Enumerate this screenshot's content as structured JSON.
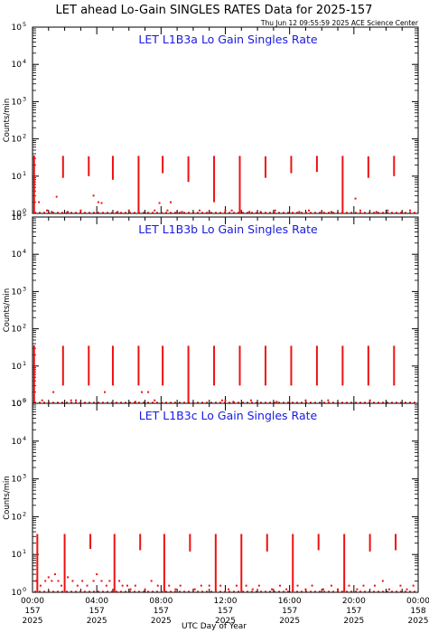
{
  "figure": {
    "title": "LET ahead Lo-Gain SINGLES RATES Data for 2025-157",
    "timestamp": "Thu Jun 12 09:55:59 2025 ACE Science Center",
    "xlabel": "UTC Day of Year",
    "ylabel": "Counts/min",
    "series_color": "#ee1111",
    "panel_title_color": "#1a1adf"
  },
  "chart_data": [
    {
      "type": "scatter",
      "title": "LET L1B3a Lo Gain Singles Rate",
      "ylabel": "Counts/min",
      "xlabel": "UTC Day of Year",
      "x_unit": "hours",
      "xlim": [
        0,
        24
      ],
      "ylim": [
        1,
        100000
      ],
      "log_y": true,
      "grid": false,
      "spikes": [
        {
          "x": 0.1,
          "y_low": 1,
          "y_high": 36
        },
        {
          "x": 1.9,
          "y_low": 9,
          "y_high": 35
        },
        {
          "x": 3.5,
          "y_low": 10,
          "y_high": 34
        },
        {
          "x": 5.0,
          "y_low": 8,
          "y_high": 35
        },
        {
          "x": 6.6,
          "y_low": 1,
          "y_high": 35
        },
        {
          "x": 8.1,
          "y_low": 12,
          "y_high": 35
        },
        {
          "x": 9.7,
          "y_low": 7,
          "y_high": 34
        },
        {
          "x": 11.3,
          "y_low": 2,
          "y_high": 35
        },
        {
          "x": 12.9,
          "y_low": 1,
          "y_high": 35
        },
        {
          "x": 14.5,
          "y_low": 9,
          "y_high": 34
        },
        {
          "x": 16.1,
          "y_low": 12,
          "y_high": 35
        },
        {
          "x": 17.7,
          "y_low": 13,
          "y_high": 35
        },
        {
          "x": 19.3,
          "y_low": 1,
          "y_high": 35
        },
        {
          "x": 20.9,
          "y_low": 9,
          "y_high": 34
        },
        {
          "x": 22.5,
          "y_low": 10,
          "y_high": 35
        }
      ],
      "points": [
        [
          0.4,
          2
        ],
        [
          0.9,
          1.2
        ],
        [
          1.2,
          1.1
        ],
        [
          1.5,
          2.8
        ],
        [
          2.2,
          1.1
        ],
        [
          3.0,
          1.2
        ],
        [
          3.8,
          3
        ],
        [
          4.1,
          2
        ],
        [
          4.3,
          1.9
        ],
        [
          5.3,
          1.1
        ],
        [
          6.0,
          1.2
        ],
        [
          7.6,
          1.2
        ],
        [
          7.9,
          1.9
        ],
        [
          8.4,
          1.2
        ],
        [
          8.6,
          2
        ],
        [
          9.0,
          1.1
        ],
        [
          9.3,
          1.1
        ],
        [
          10.4,
          1.2
        ],
        [
          11.0,
          1.1
        ],
        [
          12.0,
          1.2
        ],
        [
          12.4,
          1.2
        ],
        [
          13.5,
          1.1
        ],
        [
          14.2,
          1.1
        ],
        [
          15.1,
          1.2
        ],
        [
          16.6,
          1.1
        ],
        [
          17.2,
          1.2
        ],
        [
          18.0,
          1.1
        ],
        [
          18.6,
          1.1
        ],
        [
          20.1,
          2.5
        ],
        [
          20.4,
          1.2
        ],
        [
          21.4,
          1.1
        ],
        [
          22.1,
          1.2
        ],
        [
          23.0,
          1.1
        ],
        [
          23.5,
          1.2
        ]
      ]
    },
    {
      "type": "scatter",
      "title": "LET L1B3b Lo Gain Singles Rate",
      "ylabel": "Counts/min",
      "xlabel": "UTC Day of Year",
      "x_unit": "hours",
      "xlim": [
        0,
        24
      ],
      "ylim": [
        1,
        100000
      ],
      "log_y": true,
      "grid": false,
      "spikes": [
        {
          "x": 0.1,
          "y_low": 1,
          "y_high": 36
        },
        {
          "x": 1.9,
          "y_low": 3,
          "y_high": 35
        },
        {
          "x": 3.5,
          "y_low": 3,
          "y_high": 35
        },
        {
          "x": 5.0,
          "y_low": 3,
          "y_high": 35
        },
        {
          "x": 6.6,
          "y_low": 3,
          "y_high": 35
        },
        {
          "x": 8.1,
          "y_low": 3,
          "y_high": 35
        },
        {
          "x": 9.7,
          "y_low": 1,
          "y_high": 35
        },
        {
          "x": 11.3,
          "y_low": 3,
          "y_high": 35
        },
        {
          "x": 12.9,
          "y_low": 3,
          "y_high": 35
        },
        {
          "x": 14.5,
          "y_low": 3,
          "y_high": 35
        },
        {
          "x": 16.1,
          "y_low": 3,
          "y_high": 35
        },
        {
          "x": 17.7,
          "y_low": 3,
          "y_high": 35
        },
        {
          "x": 19.3,
          "y_low": 3,
          "y_high": 35
        },
        {
          "x": 20.9,
          "y_low": 3,
          "y_high": 35
        },
        {
          "x": 22.5,
          "y_low": 3,
          "y_high": 35
        }
      ],
      "points": [
        [
          0.6,
          1.2
        ],
        [
          1.3,
          2
        ],
        [
          2.4,
          1.2
        ],
        [
          2.7,
          1.2
        ],
        [
          4.5,
          2
        ],
        [
          6.4,
          1.1
        ],
        [
          6.8,
          2
        ],
        [
          7.2,
          2
        ],
        [
          7.6,
          1.2
        ],
        [
          11.8,
          1.2
        ],
        [
          12.0,
          1.2
        ],
        [
          12.5,
          1.1
        ],
        [
          13.6,
          1.2
        ],
        [
          15.2,
          1.1
        ],
        [
          17.0,
          1.2
        ],
        [
          18.4,
          1.2
        ],
        [
          21.0,
          1.2
        ]
      ]
    },
    {
      "type": "scatter",
      "title": "LET L1B3c Lo Gain Singles Rate",
      "ylabel": "Counts/min",
      "xlabel": "UTC Day of Year",
      "x_unit": "hours",
      "xlim": [
        0,
        24
      ],
      "ylim": [
        1,
        100000
      ],
      "log_y": true,
      "grid": false,
      "spikes": [
        {
          "x": 0.3,
          "y_low": 1,
          "y_high": 35
        },
        {
          "x": 2.0,
          "y_low": 1,
          "y_high": 35
        },
        {
          "x": 3.6,
          "y_low": 14,
          "y_high": 35
        },
        {
          "x": 5.1,
          "y_low": 1,
          "y_high": 35
        },
        {
          "x": 6.7,
          "y_low": 13,
          "y_high": 35
        },
        {
          "x": 8.2,
          "y_low": 1,
          "y_high": 35
        },
        {
          "x": 9.8,
          "y_low": 12,
          "y_high": 35
        },
        {
          "x": 11.4,
          "y_low": 1,
          "y_high": 35
        },
        {
          "x": 13.0,
          "y_low": 1,
          "y_high": 35
        },
        {
          "x": 14.6,
          "y_low": 12,
          "y_high": 35
        },
        {
          "x": 16.2,
          "y_low": 1,
          "y_high": 35
        },
        {
          "x": 17.8,
          "y_low": 13,
          "y_high": 35
        },
        {
          "x": 19.4,
          "y_low": 1,
          "y_high": 35
        },
        {
          "x": 21.0,
          "y_low": 12,
          "y_high": 35
        },
        {
          "x": 22.6,
          "y_low": 13,
          "y_high": 35
        }
      ],
      "points": [
        [
          0.2,
          2
        ],
        [
          0.5,
          1.5
        ],
        [
          0.8,
          2
        ],
        [
          1.0,
          2.5
        ],
        [
          1.2,
          2
        ],
        [
          1.4,
          3
        ],
        [
          1.6,
          2
        ],
        [
          1.8,
          1.5
        ],
        [
          2.2,
          2.5
        ],
        [
          2.5,
          2
        ],
        [
          2.8,
          1.5
        ],
        [
          3.1,
          2
        ],
        [
          3.4,
          1.5
        ],
        [
          3.8,
          2
        ],
        [
          4.0,
          3
        ],
        [
          4.3,
          2
        ],
        [
          4.6,
          1.5
        ],
        [
          4.8,
          2
        ],
        [
          5.4,
          2
        ],
        [
          5.6,
          1.5
        ],
        [
          5.9,
          1.5
        ],
        [
          6.1,
          1.2
        ],
        [
          6.4,
          1.5
        ],
        [
          7.0,
          1.2
        ],
        [
          7.4,
          2
        ],
        [
          7.8,
          1.5
        ],
        [
          8.5,
          1.5
        ],
        [
          8.9,
          1.2
        ],
        [
          9.2,
          1.5
        ],
        [
          10.1,
          1.2
        ],
        [
          10.5,
          1.5
        ],
        [
          11.0,
          1.5
        ],
        [
          11.7,
          1.5
        ],
        [
          12.2,
          1.2
        ],
        [
          12.7,
          1.5
        ],
        [
          13.3,
          1.5
        ],
        [
          13.7,
          1.2
        ],
        [
          14.1,
          1.5
        ],
        [
          14.9,
          1.2
        ],
        [
          15.4,
          1.5
        ],
        [
          15.8,
          1.2
        ],
        [
          16.5,
          1.5
        ],
        [
          17.0,
          1.2
        ],
        [
          17.4,
          1.5
        ],
        [
          18.1,
          1.2
        ],
        [
          18.6,
          1.5
        ],
        [
          19.0,
          1.2
        ],
        [
          19.7,
          1.5
        ],
        [
          20.2,
          1.2
        ],
        [
          20.6,
          1.5
        ],
        [
          21.3,
          1.5
        ],
        [
          21.8,
          2
        ],
        [
          22.2,
          1.2
        ],
        [
          22.9,
          1.5
        ],
        [
          23.3,
          1.2
        ],
        [
          23.7,
          1.5
        ]
      ]
    }
  ],
  "x_ticks": [
    {
      "hour": 0,
      "lines": [
        "00:00",
        "157",
        "2025"
      ]
    },
    {
      "hour": 4,
      "lines": [
        "04:00",
        "157",
        "2025"
      ]
    },
    {
      "hour": 8,
      "lines": [
        "08:00",
        "157",
        "2025"
      ]
    },
    {
      "hour": 12,
      "lines": [
        "12:00",
        "157",
        "2025"
      ]
    },
    {
      "hour": 16,
      "lines": [
        "16:00",
        "157",
        "2025"
      ]
    },
    {
      "hour": 20,
      "lines": [
        "20:00",
        "157",
        "2025"
      ]
    },
    {
      "hour": 24,
      "lines": [
        "00:00",
        "158",
        "2025"
      ]
    }
  ],
  "y_ticks": [
    {
      "value": 1,
      "base": "10",
      "exp": "0"
    },
    {
      "value": 10,
      "base": "10",
      "exp": "1"
    },
    {
      "value": 100,
      "base": "10",
      "exp": "2"
    },
    {
      "value": 1000,
      "base": "10",
      "exp": "3"
    },
    {
      "value": 10000,
      "base": "10",
      "exp": "4"
    },
    {
      "value": 100000,
      "base": "10",
      "exp": "5"
    }
  ]
}
